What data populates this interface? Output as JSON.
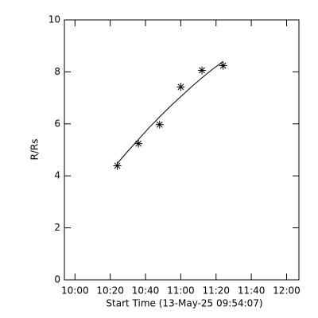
{
  "chart_data": {
    "type": "scatter",
    "x_label": "Start Time (13-May-25 09:54:07)",
    "y_label": "R/Rs",
    "xlim": [
      594,
      727
    ],
    "xticks": [
      {
        "value": 600,
        "label": "10:00"
      },
      {
        "value": 620,
        "label": "10:20"
      },
      {
        "value": 640,
        "label": "10:40"
      },
      {
        "value": 660,
        "label": "11:00"
      },
      {
        "value": 680,
        "label": "11:20"
      },
      {
        "value": 700,
        "label": "11:40"
      },
      {
        "value": 720,
        "label": "12:00"
      }
    ],
    "ylim": [
      0,
      10
    ],
    "yticks": [
      0,
      2,
      4,
      6,
      8,
      10
    ],
    "color": "#000000",
    "x": [
      624,
      636,
      648,
      660,
      672,
      684
    ],
    "values": [
      4.39,
      5.24,
      5.97,
      7.42,
      8.06,
      8.24
    ],
    "fit": {
      "x": [
        624,
        630,
        636,
        642,
        648,
        654,
        660,
        666,
        672,
        678,
        684
      ],
      "values": [
        4.48,
        4.95,
        5.4,
        5.85,
        6.27,
        6.67,
        7.05,
        7.42,
        7.77,
        8.1,
        8.4
      ]
    }
  }
}
